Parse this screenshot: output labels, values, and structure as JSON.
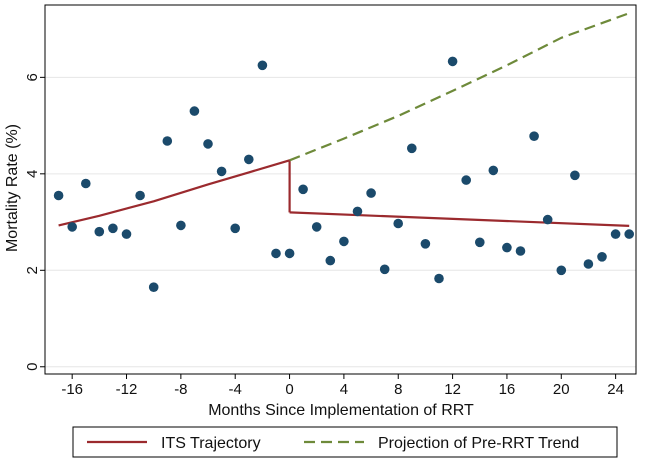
{
  "chart_data": {
    "type": "scatter",
    "xlabel": "Months Since Implementation of RRT",
    "ylabel": "Mortality Rate (%)",
    "xlim": [
      -18,
      25.5
    ],
    "ylim": [
      -0.15,
      7.5
    ],
    "x_ticks": [
      -16,
      -12,
      -8,
      -4,
      0,
      4,
      8,
      12,
      16,
      20,
      24
    ],
    "y_ticks": [
      0,
      2,
      4,
      6
    ],
    "grid": "horizontal",
    "legend_position": "bottom",
    "points": {
      "color": "#1b4a6b",
      "x": [
        -17,
        -16,
        -15,
        -14,
        -13,
        -12,
        -11,
        -10,
        -9,
        -8,
        -7,
        -6,
        -5,
        -4,
        -3,
        -2,
        -1,
        0,
        1,
        2,
        3,
        4,
        5,
        6,
        7,
        8,
        9,
        10,
        11,
        12,
        13,
        14,
        15,
        16,
        17,
        18,
        19,
        20,
        21,
        22,
        23,
        24,
        25
      ],
      "y": [
        3.55,
        2.9,
        3.8,
        2.8,
        2.87,
        2.75,
        3.55,
        1.65,
        4.68,
        2.93,
        5.3,
        4.62,
        4.05,
        2.87,
        4.3,
        6.25,
        2.35,
        2.35,
        3.68,
        2.9,
        2.2,
        2.6,
        3.22,
        3.6,
        2.02,
        2.97,
        4.53,
        2.55,
        1.83,
        6.33,
        3.87,
        2.58,
        4.07,
        2.47,
        2.4,
        4.78,
        3.05,
        2.0,
        3.97,
        2.13,
        2.28,
        2.75,
        2.75
      ]
    },
    "series": [
      {
        "name": "ITS Trajectory",
        "color": "#9b2a2e",
        "style": "solid",
        "segments": [
          {
            "x": [
              -17,
              -14,
              -10,
              -6,
              -3,
              0
            ],
            "y": [
              2.93,
              3.13,
              3.43,
              3.78,
              4.03,
              4.28
            ]
          },
          {
            "x": [
              0,
              0
            ],
            "y": [
              4.28,
              3.2
            ]
          },
          {
            "x": [
              0,
              25
            ],
            "y": [
              3.2,
              2.92
            ]
          }
        ]
      },
      {
        "name": "Projection of Pre-RRT Trend",
        "color": "#6e8a3a",
        "style": "dashed",
        "segments": [
          {
            "x": [
              0,
              4,
              8,
              12,
              16,
              20,
              25
            ],
            "y": [
              4.28,
              4.73,
              5.2,
              5.72,
              6.25,
              6.82,
              7.33
            ]
          }
        ]
      }
    ]
  }
}
